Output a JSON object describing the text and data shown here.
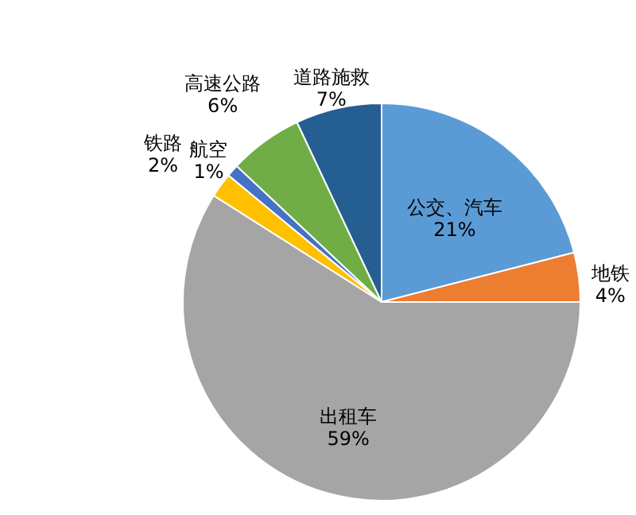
{
  "chart_data": {
    "type": "pie",
    "categories": [
      "公交、汽车",
      "地铁",
      "出租车",
      "铁路",
      "航空",
      "高速公路",
      "道路施救"
    ],
    "values": [
      21,
      4,
      59,
      2,
      1,
      6,
      7
    ],
    "value_labels": [
      "21%",
      "4%",
      "59%",
      "2%",
      "1%",
      "6%",
      "7%"
    ],
    "colors": [
      "#5b9bd5",
      "#ed7d31",
      "#a5a5a5",
      "#ffc000",
      "#4472c4",
      "#70ad47",
      "#255e91"
    ],
    "legend": false
  }
}
